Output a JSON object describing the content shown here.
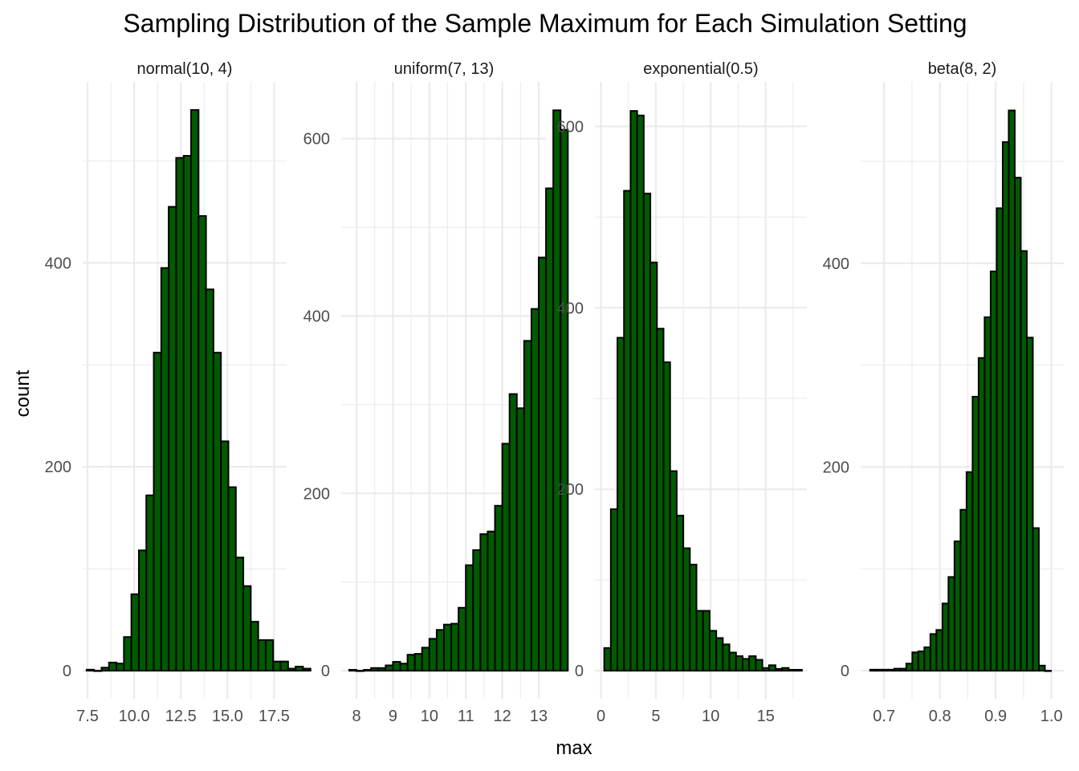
{
  "chart_data": {
    "type": "bar",
    "title": "Sampling Distribution of the Sample Maximum for Each Simulation Setting",
    "xlabel": "max",
    "ylabel": "count",
    "grid": true,
    "legend": "none",
    "bar_color": "#005a00",
    "bar_border_color": "#000000",
    "grid_color": "#ebebeb",
    "facets": [
      {
        "name": "normal(10, 4)",
        "xlim": [
          7.24,
          18.17
        ],
        "ylim": [
          -27.5,
          577.5
        ],
        "x_ticks": [
          7.5,
          10.0,
          12.5,
          15.0,
          17.5
        ],
        "x_tick_labels": [
          "7.5",
          "10.0",
          "12.5",
          "15.0",
          "17.5"
        ],
        "y_ticks": [
          0,
          200,
          400
        ],
        "y_tick_labels": [
          "0",
          "200",
          "400"
        ],
        "bin_start": 7.45,
        "bin_width": 0.4,
        "counts": [
          1,
          0,
          3,
          8,
          7,
          33,
          75,
          118,
          172,
          312,
          395,
          455,
          503,
          505,
          550,
          446,
          374,
          312,
          225,
          180,
          111,
          83,
          48,
          30,
          30,
          9,
          9,
          2,
          4,
          2
        ]
      },
      {
        "name": "uniform(7, 13)",
        "xlim": [
          7.58,
          13.22
        ],
        "ylim": [
          -31.6,
          664
        ],
        "x_ticks": [
          8,
          9,
          10,
          11,
          12,
          13
        ],
        "x_tick_labels": [
          "8",
          "9",
          "10",
          "11",
          "12",
          "13"
        ],
        "y_ticks": [
          0,
          200,
          400,
          600
        ],
        "y_tick_labels": [
          "0",
          "200",
          "400",
          "600"
        ],
        "bin_start": 7.8,
        "bin_width": 0.2,
        "counts": [
          1,
          0,
          1,
          3,
          3,
          6,
          10,
          8,
          18,
          19,
          26,
          36,
          46,
          52,
          53,
          71,
          119,
          136,
          154,
          157,
          186,
          256,
          312,
          296,
          372,
          408,
          466,
          544,
          632,
          610
        ]
      },
      {
        "name": "exponential(0.5)",
        "xlim": [
          -0.55,
          18.75
        ],
        "ylim": [
          -30.9,
          649
        ],
        "x_ticks": [
          0,
          5,
          10,
          15
        ],
        "x_tick_labels": [
          "0",
          "5",
          "10",
          "15"
        ],
        "y_ticks": [
          0,
          200,
          400,
          600
        ],
        "y_tick_labels": [
          "0",
          "200",
          "400",
          "600"
        ],
        "bin_start": 0.3,
        "bin_width": 0.6,
        "counts": [
          25,
          178,
          367,
          529,
          617,
          612,
          526,
          450,
          377,
          340,
          220,
          171,
          135,
          117,
          66,
          66,
          44,
          36,
          29,
          20,
          16,
          13,
          16,
          12,
          3,
          6,
          2,
          3,
          1,
          1
        ]
      },
      {
        "name": "beta(8, 2)",
        "xlim": [
          0.658,
          1.022
        ],
        "ylim": [
          -27.5,
          578
        ],
        "x_ticks": [
          0.7,
          0.8,
          0.9,
          1.0
        ],
        "x_tick_labels": [
          "0.7",
          "0.8",
          "0.9",
          "1.0"
        ],
        "y_ticks": [
          0,
          200,
          400
        ],
        "y_tick_labels": [
          "0",
          "200",
          "400"
        ],
        "bin_start": 0.675,
        "bin_width": 0.0108,
        "counts": [
          1,
          1,
          1,
          1,
          2,
          2,
          7,
          18,
          19,
          23,
          36,
          40,
          66,
          92,
          127,
          158,
          195,
          269,
          307,
          347,
          392,
          454,
          519,
          550,
          484,
          412,
          327,
          140,
          5,
          0
        ]
      }
    ]
  }
}
